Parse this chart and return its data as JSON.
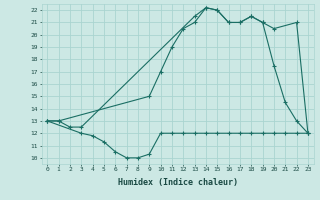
{
  "background_color": "#cce8e4",
  "grid_color": "#aad4d0",
  "line_color": "#1a6e64",
  "xlabel": "Humidex (Indice chaleur)",
  "xlim": [
    -0.5,
    23.5
  ],
  "ylim": [
    9.5,
    22.5
  ],
  "yticks": [
    10,
    11,
    12,
    13,
    14,
    15,
    16,
    17,
    18,
    19,
    20,
    21,
    22
  ],
  "xticks": [
    0,
    1,
    2,
    3,
    4,
    5,
    6,
    7,
    8,
    9,
    10,
    11,
    12,
    13,
    14,
    15,
    16,
    17,
    18,
    19,
    20,
    21,
    22,
    23
  ],
  "line1_x": [
    0,
    1,
    2,
    3,
    13,
    14,
    15,
    16,
    17,
    18,
    19,
    20,
    22,
    23
  ],
  "line1_y": [
    13,
    13,
    12.5,
    12.5,
    21.5,
    22.2,
    22,
    21,
    21,
    21.5,
    21,
    20.5,
    21,
    12
  ],
  "line2_x": [
    0,
    3,
    4,
    5,
    6,
    7,
    8,
    9,
    10,
    11,
    12,
    13,
    14,
    15,
    16,
    17,
    18,
    19,
    20,
    21,
    22,
    23
  ],
  "line2_y": [
    13,
    12,
    11.8,
    11.3,
    10.5,
    10.0,
    10.0,
    10.3,
    12,
    12,
    12,
    12,
    12,
    12,
    12,
    12,
    12,
    12,
    12,
    12,
    12,
    12
  ],
  "line3_x": [
    0,
    1,
    9,
    10,
    11,
    12,
    13,
    14,
    15,
    16,
    17,
    18,
    19,
    20,
    21,
    22,
    23
  ],
  "line3_y": [
    13,
    13,
    15,
    17,
    19,
    20.5,
    21,
    22.2,
    22,
    21,
    21,
    21.5,
    21,
    17.5,
    14.5,
    13,
    12
  ]
}
